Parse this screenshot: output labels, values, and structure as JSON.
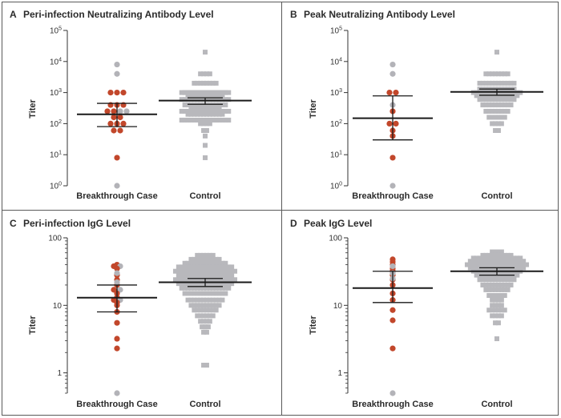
{
  "colors": {
    "red": "#c2472b",
    "gray_point": "#b3b3b8",
    "control_square": "#b8b8bc",
    "axis": "#333333",
    "stat_bar": "#1a1a1a"
  },
  "chart_data": [
    {
      "id": "A",
      "type": "scatter",
      "title": "Peri-infection Neutralizing Antibody Level",
      "ylabel": "Titer",
      "yscale": "log",
      "ylim": [
        1,
        100000
      ],
      "yticks": [
        {
          "value": 1,
          "base": "10",
          "exp": "0"
        },
        {
          "value": 10,
          "base": "10",
          "exp": "1"
        },
        {
          "value": 100,
          "base": "10",
          "exp": "2"
        },
        {
          "value": 1000,
          "base": "10",
          "exp": "3"
        },
        {
          "value": 10000,
          "base": "10",
          "exp": "4"
        },
        {
          "value": 100000,
          "base": "10",
          "exp": "5"
        }
      ],
      "categories": [
        "Breakthrough Case",
        "Control"
      ],
      "breakthrough": {
        "red": [
          1000,
          1000,
          1000,
          400,
          400,
          400,
          250,
          250,
          160,
          160,
          100,
          100,
          100,
          60,
          60,
          8
        ],
        "gray": [
          8000,
          4000,
          250,
          250,
          1
        ],
        "center": 200,
        "lower": 80,
        "upper": 450
      },
      "control": {
        "values": [
          20000,
          4000,
          2000,
          1000,
          1000,
          800,
          600,
          400,
          300,
          250,
          200,
          130,
          100,
          60,
          40,
          20,
          8
        ],
        "widths": [
          1,
          4,
          8,
          14,
          16,
          12,
          16,
          14,
          10,
          16,
          12,
          16,
          4,
          2,
          1,
          1,
          1
        ],
        "center": 550,
        "lower": 420,
        "upper": 680
      }
    },
    {
      "id": "B",
      "type": "scatter",
      "title": "Peak Neutralizing Antibody Level",
      "ylabel": "Titer",
      "yscale": "log",
      "ylim": [
        1,
        100000
      ],
      "yticks": [
        {
          "value": 1,
          "base": "10",
          "exp": "0"
        },
        {
          "value": 10,
          "base": "10",
          "exp": "1"
        },
        {
          "value": 100,
          "base": "10",
          "exp": "2"
        },
        {
          "value": 1000,
          "base": "10",
          "exp": "3"
        },
        {
          "value": 10000,
          "base": "10",
          "exp": "4"
        },
        {
          "value": 100000,
          "base": "10",
          "exp": "5"
        }
      ],
      "categories": [
        "Breakthrough Case",
        "Control"
      ],
      "breakthrough": {
        "red": [
          1000,
          1000,
          250,
          100,
          100,
          60,
          40,
          8
        ],
        "gray": [
          8000,
          4000,
          400,
          1
        ],
        "center": 150,
        "lower": 30,
        "upper": 780
      },
      "control": {
        "values": [
          20000,
          4000,
          2000,
          1300,
          1000,
          800,
          600,
          400,
          250,
          160,
          100,
          60
        ],
        "widths": [
          1,
          8,
          12,
          12,
          16,
          14,
          12,
          10,
          8,
          6,
          4,
          2
        ],
        "center": 1050,
        "lower": 820,
        "upper": 1300
      }
    },
    {
      "id": "C",
      "type": "scatter",
      "title": "Peri-infection IgG Level",
      "ylabel": "Titer",
      "yscale": "log",
      "ylim": [
        0.5,
        100
      ],
      "yticks": [
        {
          "value": 1,
          "label": "1"
        },
        {
          "value": 10,
          "label": "10"
        },
        {
          "value": 100,
          "label": "100"
        }
      ],
      "categories": [
        "Breakthrough Case",
        "Control"
      ],
      "breakthrough": {
        "red": [
          40,
          38,
          35,
          28,
          24,
          20,
          17,
          15,
          13,
          12,
          11,
          10,
          8,
          5.5,
          3.2,
          2.3
        ],
        "gray": [
          38,
          30,
          22,
          17,
          12,
          0.5
        ],
        "center": 13,
        "lower": 8,
        "upper": 20
      },
      "control": {
        "values": [
          55,
          48,
          42,
          37,
          32,
          28,
          24,
          21,
          18,
          15,
          12,
          10,
          8.5,
          7,
          5.8,
          4.8,
          4,
          1.3
        ],
        "widths": [
          6,
          10,
          14,
          18,
          20,
          18,
          20,
          18,
          16,
          14,
          12,
          10,
          8,
          6,
          4,
          3,
          2,
          2
        ],
        "center": 22,
        "lower": 19,
        "upper": 25
      }
    },
    {
      "id": "D",
      "type": "scatter",
      "title": "Peak IgG Level",
      "ylabel": "Titer",
      "yscale": "log",
      "ylim": [
        0.5,
        100
      ],
      "yticks": [
        {
          "value": 1,
          "label": "1"
        },
        {
          "value": 10,
          "label": "10"
        },
        {
          "value": 100,
          "label": "100"
        }
      ],
      "categories": [
        "Breakthrough Case",
        "Control"
      ],
      "breakthrough": {
        "red": [
          48,
          44,
          40,
          35,
          32,
          28,
          24,
          20,
          15,
          12,
          8.5,
          6,
          2.3
        ],
        "gray": [
          38,
          30,
          25,
          0.5
        ],
        "center": 18,
        "lower": 11,
        "upper": 32
      },
      "control": {
        "values": [
          62,
          55,
          50,
          45,
          40,
          36,
          32,
          28,
          24,
          20,
          17,
          14,
          12,
          10,
          8.5,
          7,
          5.5,
          3.2
        ],
        "widths": [
          4,
          10,
          16,
          18,
          20,
          18,
          16,
          14,
          12,
          10,
          8,
          6,
          4,
          4,
          6,
          4,
          2,
          1
        ],
        "center": 32,
        "lower": 28,
        "upper": 36
      }
    }
  ]
}
